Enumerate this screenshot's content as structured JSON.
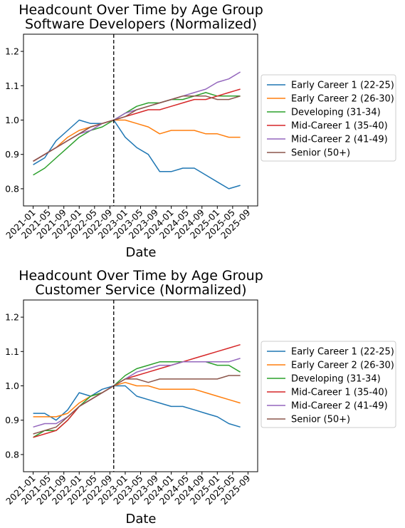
{
  "chart_data": [
    {
      "type": "line",
      "title": "Headcount Over Time by Age Group",
      "subtitle": "Software Developers (Normalized)",
      "xlabel": "Date",
      "ylabel": "",
      "ylim": [
        0.75,
        1.25
      ],
      "yticks": [
        0.8,
        0.9,
        1.0,
        1.1,
        1.2
      ],
      "ytick_labels": [
        "0.8",
        "0.9",
        "1.0",
        "1.1",
        "1.2"
      ],
      "xticks": [
        "2021-01",
        "2021-05",
        "2021-09",
        "2022-01",
        "2022-05",
        "2022-09",
        "2023-01",
        "2023-05",
        "2023-09",
        "2024-01",
        "2024-05",
        "2024-09",
        "2025-01",
        "2025-05",
        "2025-09"
      ],
      "reference_line": "2022-10",
      "grid": false,
      "legend_position": "right",
      "x": [
        "2021-01",
        "2021-04",
        "2021-07",
        "2021-10",
        "2022-01",
        "2022-04",
        "2022-07",
        "2022-10",
        "2023-01",
        "2023-04",
        "2023-07",
        "2023-10",
        "2024-01",
        "2024-04",
        "2024-07",
        "2024-10",
        "2025-01",
        "2025-04",
        "2025-07"
      ],
      "series": [
        {
          "name": "Early Career 1 (22-25)",
          "color": "#1f77b4",
          "values": [
            0.87,
            0.89,
            0.94,
            0.97,
            1.0,
            0.99,
            0.99,
            1.0,
            0.95,
            0.92,
            0.9,
            0.85,
            0.85,
            0.86,
            0.86,
            0.84,
            0.82,
            0.8,
            0.81
          ]
        },
        {
          "name": "Early Career 2 (26-30)",
          "color": "#ff7f0e",
          "values": [
            0.88,
            0.9,
            0.92,
            0.95,
            0.97,
            0.98,
            0.99,
            1.0,
            1.0,
            0.99,
            0.98,
            0.96,
            0.97,
            0.97,
            0.97,
            0.96,
            0.96,
            0.95,
            0.95
          ]
        },
        {
          "name": "Developing (31-34)",
          "color": "#2ca02c",
          "values": [
            0.84,
            0.86,
            0.89,
            0.92,
            0.95,
            0.97,
            0.98,
            1.0,
            1.02,
            1.04,
            1.05,
            1.05,
            1.06,
            1.06,
            1.07,
            1.08,
            1.07,
            1.07,
            1.07
          ]
        },
        {
          "name": "Mid-Career 1 (35-40)",
          "color": "#d62728",
          "values": [
            0.88,
            0.9,
            0.92,
            0.94,
            0.96,
            0.98,
            0.99,
            1.0,
            1.01,
            1.02,
            1.03,
            1.03,
            1.04,
            1.05,
            1.06,
            1.06,
            1.07,
            1.08,
            1.09
          ]
        },
        {
          "name": "Mid-Career 2 (41-49)",
          "color": "#9467bd",
          "values": [
            0.88,
            0.9,
            0.92,
            0.94,
            0.96,
            0.97,
            0.99,
            1.0,
            1.02,
            1.03,
            1.04,
            1.05,
            1.06,
            1.07,
            1.08,
            1.09,
            1.11,
            1.12,
            1.14
          ]
        },
        {
          "name": "Senior (50+)",
          "color": "#8c564b",
          "values": [
            0.88,
            0.9,
            0.92,
            0.94,
            0.96,
            0.98,
            0.99,
            1.0,
            1.01,
            1.03,
            1.04,
            1.05,
            1.06,
            1.07,
            1.07,
            1.07,
            1.06,
            1.06,
            1.07
          ]
        }
      ]
    },
    {
      "type": "line",
      "title": "Headcount Over Time by Age Group",
      "subtitle": "Customer Service (Normalized)",
      "xlabel": "Date",
      "ylabel": "",
      "ylim": [
        0.75,
        1.25
      ],
      "yticks": [
        0.8,
        0.9,
        1.0,
        1.1,
        1.2
      ],
      "ytick_labels": [
        "0.8",
        "0.9",
        "1.0",
        "1.1",
        "1.2"
      ],
      "xticks": [
        "2021-01",
        "2021-05",
        "2021-09",
        "2022-01",
        "2022-05",
        "2022-09",
        "2023-01",
        "2023-05",
        "2023-09",
        "2024-01",
        "2024-05",
        "2024-09",
        "2025-01",
        "2025-05",
        "2025-09"
      ],
      "reference_line": "2022-10",
      "grid": false,
      "legend_position": "right",
      "x": [
        "2021-01",
        "2021-04",
        "2021-07",
        "2021-10",
        "2022-01",
        "2022-04",
        "2022-07",
        "2022-10",
        "2023-01",
        "2023-04",
        "2023-07",
        "2023-10",
        "2024-01",
        "2024-04",
        "2024-07",
        "2024-10",
        "2025-01",
        "2025-04",
        "2025-07"
      ],
      "series": [
        {
          "name": "Early Career 1 (22-25)",
          "color": "#1f77b4",
          "values": [
            0.92,
            0.92,
            0.9,
            0.93,
            0.98,
            0.97,
            0.99,
            1.0,
            1.0,
            0.97,
            0.96,
            0.95,
            0.94,
            0.94,
            0.93,
            0.92,
            0.91,
            0.89,
            0.88
          ]
        },
        {
          "name": "Early Career 2 (26-30)",
          "color": "#ff7f0e",
          "values": [
            0.91,
            0.91,
            0.91,
            0.92,
            0.95,
            0.97,
            0.98,
            1.0,
            1.01,
            1.0,
            1.0,
            0.99,
            0.99,
            0.99,
            0.99,
            0.98,
            0.97,
            0.96,
            0.95
          ]
        },
        {
          "name": "Developing (31-34)",
          "color": "#2ca02c",
          "values": [
            0.85,
            0.87,
            0.87,
            0.9,
            0.94,
            0.97,
            0.98,
            1.0,
            1.03,
            1.05,
            1.06,
            1.07,
            1.07,
            1.07,
            1.07,
            1.07,
            1.06,
            1.06,
            1.04
          ]
        },
        {
          "name": "Mid-Career 1 (35-40)",
          "color": "#d62728",
          "values": [
            0.85,
            0.86,
            0.87,
            0.9,
            0.94,
            0.96,
            0.98,
            1.0,
            1.02,
            1.03,
            1.04,
            1.05,
            1.06,
            1.07,
            1.08,
            1.09,
            1.1,
            1.11,
            1.12
          ]
        },
        {
          "name": "Mid-Career 2 (41-49)",
          "color": "#9467bd",
          "values": [
            0.88,
            0.89,
            0.89,
            0.91,
            0.94,
            0.96,
            0.98,
            1.0,
            1.02,
            1.04,
            1.05,
            1.06,
            1.06,
            1.07,
            1.07,
            1.07,
            1.07,
            1.07,
            1.08
          ]
        },
        {
          "name": "Senior (50+)",
          "color": "#8c564b",
          "values": [
            0.86,
            0.87,
            0.88,
            0.91,
            0.94,
            0.96,
            0.98,
            1.0,
            1.02,
            1.02,
            1.01,
            1.02,
            1.02,
            1.02,
            1.02,
            1.02,
            1.02,
            1.03,
            1.03
          ]
        }
      ]
    }
  ]
}
